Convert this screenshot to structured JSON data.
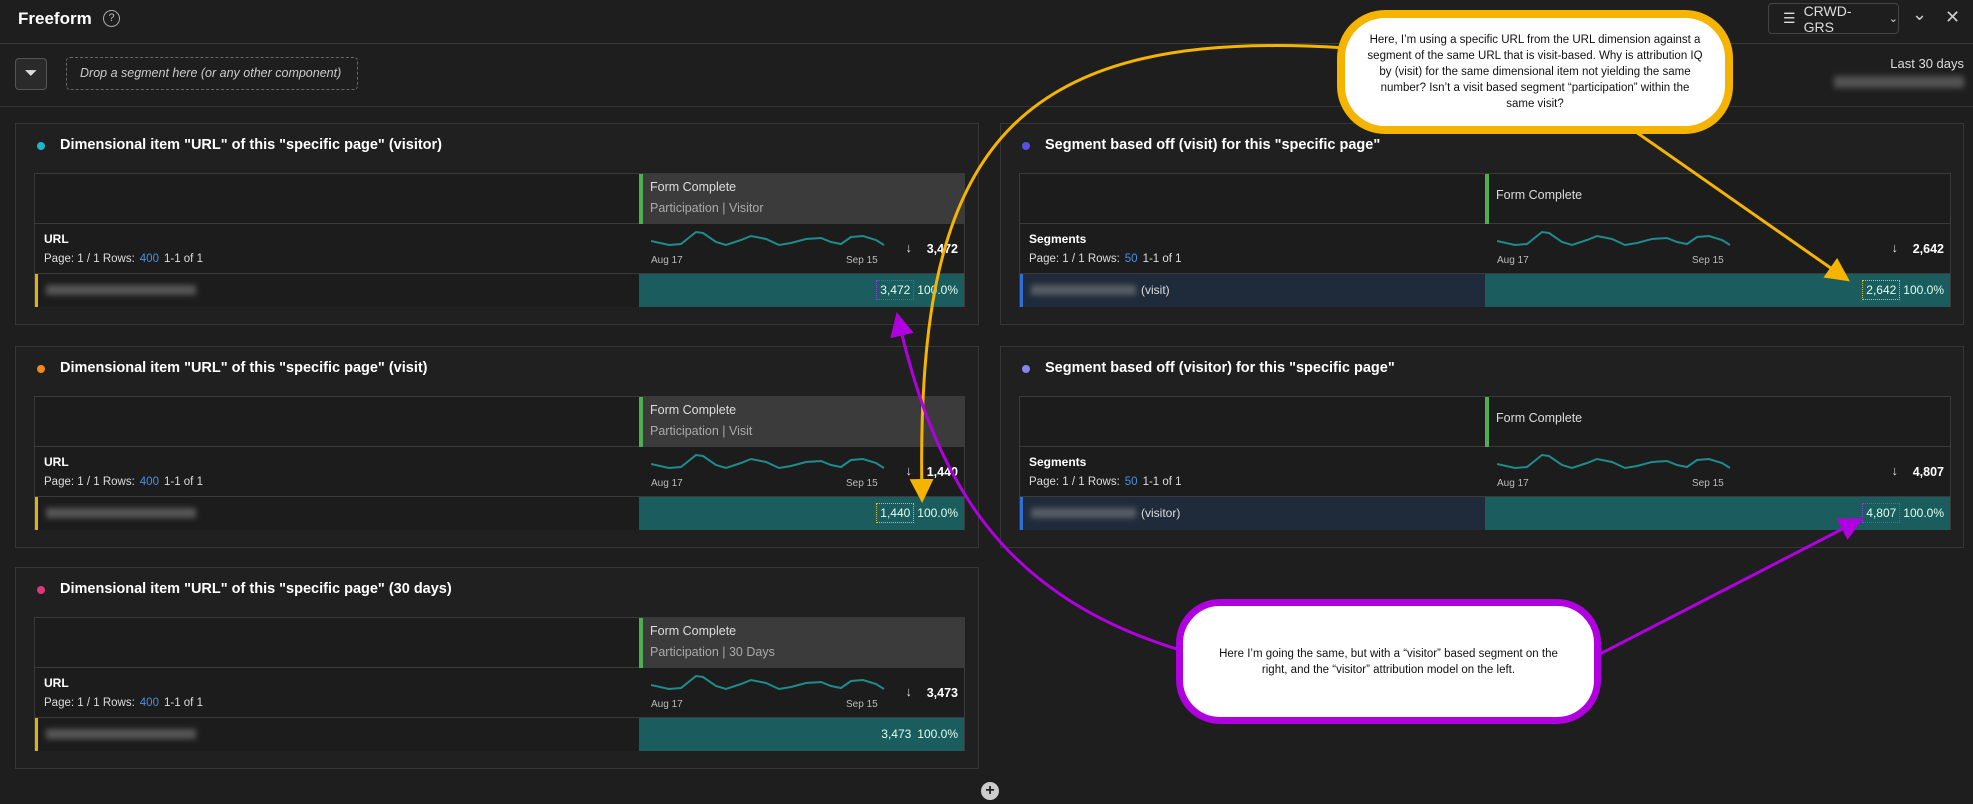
{
  "header": {
    "title": "Freeform",
    "help_icon": "question-circle-icon",
    "report_suite": "CRWD-GRS",
    "report_suite_icon": "database-icon",
    "collapse_icon": "chevron-down-icon",
    "close_icon": "close-icon"
  },
  "segment_bar": {
    "filter_icon": "filter-add-icon",
    "drop_placeholder": "Drop a segment here (or any other component)",
    "date_range_label": "Last 30 days"
  },
  "panels": [
    {
      "title": "Dimensional item \"URL\" of this \"specific page\" (visitor)",
      "dot_color": "#1fb6c9",
      "metric": "Form Complete",
      "metric_sub": "Participation | Visitor",
      "dimension": "URL",
      "page_label": "Page: 1 / 1 Rows:",
      "rows": "400",
      "range": "1-1 of 1",
      "spark_start": "Aug 17",
      "spark_end": "Sep 15",
      "total": "3,472",
      "row_value": "3,472",
      "row_pct": "100.0%",
      "row_suffix": "",
      "highlight": "#9b30ff",
      "row_bar_color": "#e0b400"
    },
    {
      "title": "Dimensional item \"URL\" of this \"specific page\" (visit)",
      "dot_color": "#f08a1c",
      "metric": "Form Complete",
      "metric_sub": "Participation | Visit",
      "dimension": "URL",
      "page_label": "Page: 1 / 1 Rows:",
      "rows": "400",
      "range": "1-1 of 1",
      "spark_start": "Aug 17",
      "spark_end": "Sep 15",
      "total": "1,440",
      "row_value": "1,440",
      "row_pct": "100.0%",
      "row_suffix": "",
      "highlight": "#e6c200",
      "row_bar_color": "#e0b400"
    },
    {
      "title": "Dimensional item \"URL\" of this \"specific page\" (30 days)",
      "dot_color": "#e0367a",
      "metric": "Form Complete",
      "metric_sub": "Participation | 30 Days",
      "dimension": "URL",
      "page_label": "Page: 1 / 1 Rows:",
      "rows": "400",
      "range": "1-1 of 1",
      "spark_start": "Aug 17",
      "spark_end": "Sep 15",
      "total": "3,473",
      "row_value": "3,473",
      "row_pct": "100.0%",
      "row_suffix": "",
      "highlight": "",
      "row_bar_color": "#e0b400"
    },
    {
      "title": "Segment based off (visit) for this \"specific page\"",
      "dot_color": "#5b4ee0",
      "metric": "Form Complete",
      "metric_sub": "",
      "dimension": "Segments",
      "page_label": "Page: 1 / 1 Rows:",
      "rows": "50",
      "range": "1-1 of 1",
      "spark_start": "Aug 17",
      "spark_end": "Sep 15",
      "total": "2,642",
      "row_value": "2,642",
      "row_pct": "100.0%",
      "row_suffix": "(visit)",
      "highlight": "#e6c200",
      "row_bar_color": "#2f6fd6"
    },
    {
      "title": "Segment based off (visitor) for this \"specific page\"",
      "dot_color": "#8a83f0",
      "metric": "Form Complete",
      "metric_sub": "",
      "dimension": "Segments",
      "page_label": "Page: 1 / 1 Rows:",
      "rows": "50",
      "range": "1-1 of 1",
      "spark_start": "Aug 17",
      "spark_end": "Sep 15",
      "total": "4,807",
      "row_value": "4,807",
      "row_pct": "100.0%",
      "row_suffix": "(visitor)",
      "highlight": "#9b30ff",
      "row_bar_color": "#2f6fd6"
    }
  ],
  "annotations": {
    "callout_visit": {
      "text": "Here, I’m using a specific URL from the URL dimension against a segment of the same URL that is visit-based.  Why is attribution IQ by (visit) for the same dimensional item not yielding the same number? Isn’t a visit based segment “participation” within the same visit?",
      "color": "#f5b400"
    },
    "callout_visitor": {
      "text": "Here I’m going the same, but with a “visitor” based segment on the right, and the “visitor” attribution model on the left.",
      "color": "#b000e0"
    }
  },
  "add_icon": "plus-circle-icon"
}
